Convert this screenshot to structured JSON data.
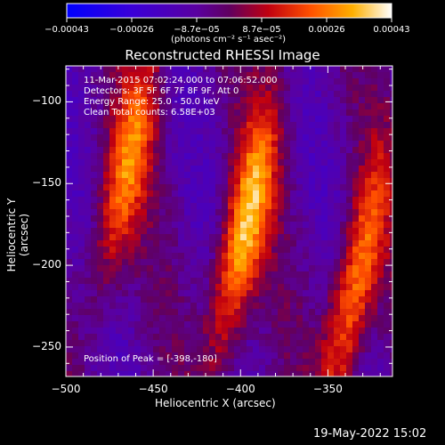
{
  "chart_data": {
    "type": "heatmap",
    "title": "Reconstructed RHESSI Image",
    "xlabel": "Heliocentric X (arcsec)",
    "ylabel": "Heliocentric Y (arcsec)",
    "xlim": [
      -500,
      -313
    ],
    "ylim": [
      -268,
      -78
    ],
    "x_ticks": [
      -500,
      -450,
      -400,
      -350
    ],
    "y_ticks": [
      -250,
      -200,
      -150,
      -100
    ],
    "x_tick_labels": [
      "−500",
      "−450",
      "−400",
      "−350"
    ],
    "y_tick_labels": [
      "−250",
      "−200",
      "−150",
      "−100"
    ],
    "colorbar": {
      "min": -0.00043,
      "max": 0.00043,
      "tick_labels": [
        "−0.00043",
        "−0.00026",
        "−8.7e−05",
        "8.7e−05",
        "0.00026",
        "0.00043"
      ],
      "units": "(photons cm⁻² s⁻¹ asec⁻²)"
    },
    "annotations": {
      "time": "11-Mar-2015 07:02:24.000 to 07:06:52.000",
      "detectors": "Detectors: 3F 5F 6F 7F 8F 9F, Att 0",
      "energy": "Energy Range: 25.0 - 50.0 keV",
      "clean": "Clean    Total counts: 6.58E+03",
      "peak": "Position of Peak = [-398,-180]"
    },
    "sources": [
      {
        "x": -465,
        "y": -140,
        "peak": 0.00032
      },
      {
        "x": -398,
        "y": -180,
        "peak": 0.00043
      },
      {
        "x": -335,
        "y": -215,
        "peak": 0.00036
      }
    ]
  },
  "footer": {
    "timestamp": "19-May-2022 15:02"
  }
}
